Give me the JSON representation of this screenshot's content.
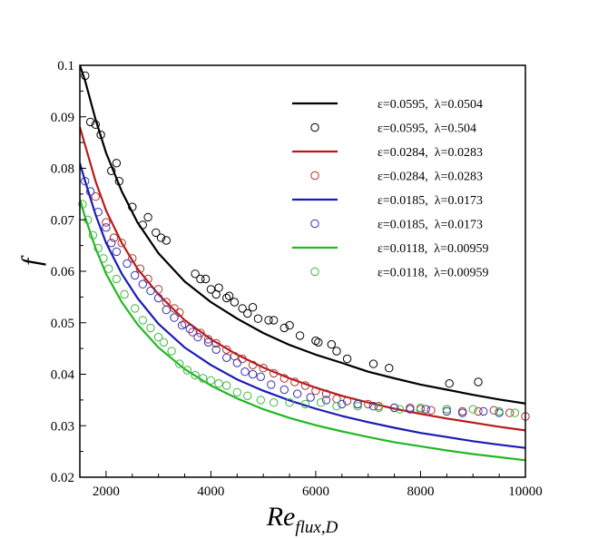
{
  "chart_data": {
    "type": "line",
    "title": "",
    "xlabel": {
      "main": "Re",
      "subscript": "flux,D"
    },
    "ylabel": "f",
    "xlim": [
      1500,
      10000
    ],
    "ylim": [
      0.02,
      0.1
    ],
    "x_ticks": [
      2000,
      4000,
      6000,
      8000,
      10000
    ],
    "x_tick_labels": [
      "2000",
      "4000",
      "6000",
      "8000",
      "10000"
    ],
    "y_ticks": [
      0.02,
      0.03,
      0.04,
      0.05,
      0.06,
      0.07,
      0.08,
      0.09,
      0.1
    ],
    "y_tick_labels": [
      "0.02",
      "0.03",
      "0.04",
      "0.05",
      "0.06",
      "0.07",
      "0.08",
      "0.09",
      "0.1"
    ],
    "grid": false,
    "legend_position": "top-right",
    "series": [
      {
        "name": "ε=0.0595,  λ=0.0504",
        "kind": "line",
        "color": "#000000",
        "x": [
          1500,
          1600,
          1800,
          2000,
          2300,
          2600,
          3000,
          3500,
          4000,
          4500,
          5000,
          5500,
          6000,
          6500,
          7000,
          7500,
          8000,
          8500,
          9000,
          9500,
          10000
        ],
        "y": [
          0.1,
          0.097,
          0.0895,
          0.083,
          0.0755,
          0.0695,
          0.0635,
          0.058,
          0.054,
          0.0508,
          0.048,
          0.0457,
          0.0438,
          0.0422,
          0.0405,
          0.0392,
          0.038,
          0.037,
          0.036,
          0.0351,
          0.0343
        ]
      },
      {
        "name": "ε=0.0595,  λ=0.504",
        "kind": "scatter",
        "color": "#000000",
        "x": [
          1600,
          1700,
          1800,
          1900,
          2100,
          2200,
          2250,
          2500,
          2700,
          2800,
          2950,
          3050,
          3150,
          3700,
          3800,
          3900,
          4000,
          4100,
          4150,
          4300,
          4350,
          4450,
          4600,
          4700,
          4800,
          4900,
          5100,
          5200,
          5400,
          5500,
          5700,
          6000,
          6050,
          6300,
          6400,
          6600,
          7100,
          7400,
          8550,
          9100
        ],
        "y": [
          0.098,
          0.089,
          0.0885,
          0.0865,
          0.0795,
          0.081,
          0.0775,
          0.0725,
          0.069,
          0.0705,
          0.0675,
          0.0665,
          0.066,
          0.0595,
          0.0585,
          0.0585,
          0.0565,
          0.0555,
          0.0568,
          0.0548,
          0.0552,
          0.054,
          0.0528,
          0.0518,
          0.053,
          0.0508,
          0.0505,
          0.0505,
          0.049,
          0.0495,
          0.0475,
          0.0465,
          0.0462,
          0.0458,
          0.0445,
          0.043,
          0.042,
          0.0412,
          0.0382,
          0.0385
        ]
      },
      {
        "name": "ε=0.0284,  λ=0.0283",
        "kind": "line",
        "color": "#b81a1a",
        "x": [
          1500,
          1600,
          1800,
          2000,
          2300,
          2600,
          3000,
          3500,
          4000,
          4500,
          5000,
          5500,
          6000,
          6500,
          7000,
          7500,
          8000,
          8500,
          9000,
          9500,
          10000
        ],
        "y": [
          0.088,
          0.0845,
          0.0775,
          0.0718,
          0.0655,
          0.0605,
          0.0555,
          0.0505,
          0.0468,
          0.0438,
          0.0413,
          0.0392,
          0.0374,
          0.0358,
          0.0345,
          0.0333,
          0.0323,
          0.0314,
          0.0306,
          0.0298,
          0.0291
        ]
      },
      {
        "name": "ε=0.0284,  λ=0.0283",
        "kind": "scatter",
        "color": "#b03030",
        "x": [
          1800,
          2000,
          2150,
          2300,
          2500,
          2650,
          2800,
          3000,
          3150,
          3300,
          3400,
          3500,
          3650,
          3800,
          3950,
          4100,
          4300,
          4450,
          4600,
          4800,
          5000,
          5200,
          5400,
          5600,
          5800,
          6000,
          6200,
          6400,
          6600,
          6800,
          7000,
          7200,
          7500,
          7800,
          8000,
          8200,
          8500,
          8800,
          9100,
          9400,
          9700,
          10000
        ],
        "y": [
          0.0745,
          0.0695,
          0.0665,
          0.0655,
          0.0625,
          0.0605,
          0.0585,
          0.0565,
          0.054,
          0.0528,
          0.052,
          0.0498,
          0.0482,
          0.048,
          0.0468,
          0.046,
          0.0448,
          0.0435,
          0.043,
          0.0418,
          0.0412,
          0.0402,
          0.0392,
          0.0385,
          0.0378,
          0.0368,
          0.0362,
          0.0352,
          0.0348,
          0.0342,
          0.0342,
          0.0338,
          0.0335,
          0.0335,
          0.0332,
          0.033,
          0.0332,
          0.0328,
          0.0328,
          0.033,
          0.0325,
          0.0318
        ]
      },
      {
        "name": "ε=0.0185,  λ=0.0173",
        "kind": "line",
        "color": "#1a1ab8",
        "x": [
          1500,
          1600,
          1800,
          2000,
          2300,
          2600,
          3000,
          3500,
          4000,
          4500,
          5000,
          5500,
          6000,
          6500,
          7000,
          7500,
          8000,
          8500,
          9000,
          9500,
          10000
        ],
        "y": [
          0.081,
          0.0775,
          0.071,
          0.0655,
          0.0595,
          0.0548,
          0.0498,
          0.0452,
          0.0418,
          0.039,
          0.0368,
          0.0349,
          0.0333,
          0.0319,
          0.0307,
          0.0296,
          0.0286,
          0.0278,
          0.027,
          0.0263,
          0.0257
        ]
      },
      {
        "name": "ε=0.0185,  λ=0.0173",
        "kind": "scatter",
        "color": "#3030b8",
        "x": [
          1600,
          1700,
          1850,
          2000,
          2100,
          2200,
          2400,
          2550,
          2700,
          2850,
          3000,
          3150,
          3300,
          3450,
          3600,
          3750,
          3950,
          4100,
          4300,
          4500,
          4650,
          4800,
          4950,
          5150,
          5400,
          5650,
          5900,
          6200,
          6500,
          6800,
          7100,
          7500,
          7800,
          8100,
          8500,
          8800,
          9200,
          9500
        ],
        "y": [
          0.0775,
          0.0755,
          0.0715,
          0.0685,
          0.0655,
          0.0638,
          0.0615,
          0.0592,
          0.0575,
          0.0562,
          0.0548,
          0.0525,
          0.051,
          0.0495,
          0.0488,
          0.0472,
          0.0462,
          0.0448,
          0.0432,
          0.0422,
          0.0405,
          0.04,
          0.0395,
          0.038,
          0.037,
          0.0362,
          0.0355,
          0.035,
          0.0342,
          0.0342,
          0.0338,
          0.0335,
          0.0332,
          0.0332,
          0.0328,
          0.0325,
          0.0328,
          0.0325
        ]
      },
      {
        "name": "ε=0.0118,  λ=0.00959",
        "kind": "line",
        "color": "#22b822",
        "x": [
          1500,
          1600,
          1800,
          2000,
          2300,
          2600,
          3000,
          3500,
          4000,
          4500,
          5000,
          5500,
          6000,
          6500,
          7000,
          7500,
          8000,
          8500,
          9000,
          9500,
          10000
        ],
        "y": [
          0.074,
          0.0705,
          0.0645,
          0.0595,
          0.054,
          0.0497,
          0.0452,
          0.041,
          0.0378,
          0.0353,
          0.0332,
          0.0315,
          0.0301,
          0.0289,
          0.0278,
          0.0268,
          0.026,
          0.0252,
          0.0245,
          0.0239,
          0.0233
        ]
      },
      {
        "name": "ε=0.0118,  λ=0.00959",
        "kind": "scatter",
        "color": "#3cb83c",
        "x": [
          1550,
          1650,
          1750,
          1850,
          1950,
          2050,
          2200,
          2350,
          2550,
          2700,
          2850,
          3000,
          3100,
          3250,
          3400,
          3550,
          3700,
          3850,
          4000,
          4150,
          4300,
          4500,
          4700,
          4950,
          5200,
          5500,
          5800,
          6100,
          6400,
          6800,
          7200,
          7600,
          8000,
          8500,
          9000,
          9500,
          9800
        ],
        "y": [
          0.073,
          0.07,
          0.067,
          0.0645,
          0.0625,
          0.0605,
          0.0585,
          0.0555,
          0.0528,
          0.0505,
          0.049,
          0.0472,
          0.0462,
          0.0445,
          0.042,
          0.0408,
          0.0398,
          0.0392,
          0.0388,
          0.0382,
          0.0378,
          0.0365,
          0.0358,
          0.035,
          0.0345,
          0.0345,
          0.0342,
          0.0345,
          0.0338,
          0.0338,
          0.0335,
          0.0332,
          0.0335,
          0.0332,
          0.0332,
          0.0328,
          0.0325
        ]
      }
    ]
  }
}
